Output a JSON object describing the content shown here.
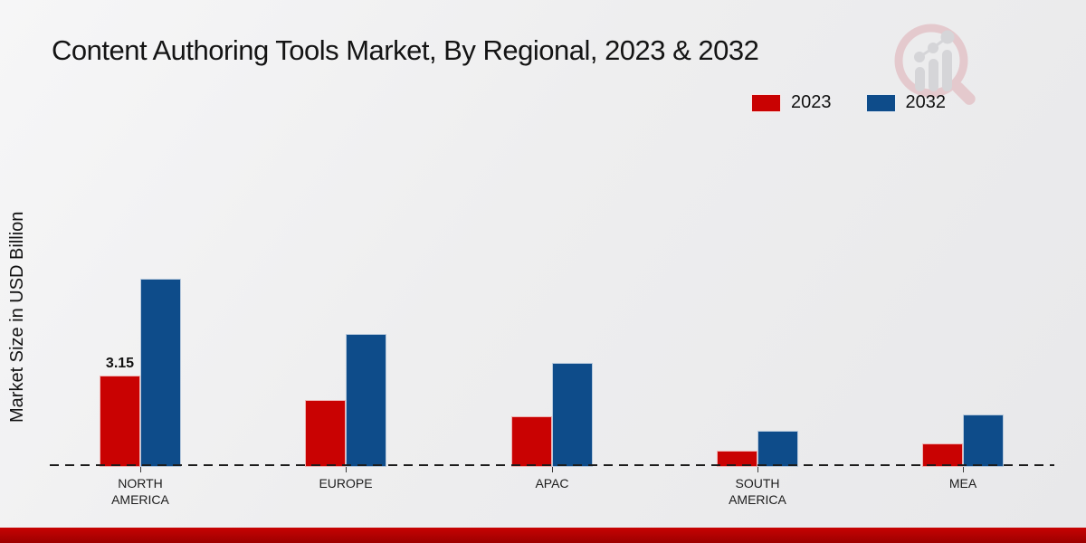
{
  "title": "Content Authoring Tools Market, By Regional, 2023 & 2032",
  "y_axis_label": "Market Size in USD Billion",
  "accent_strip_color": "#b30000",
  "watermark_icon": "magnifier-bar-chart-logo",
  "chart_data": {
    "type": "bar",
    "title": "Content Authoring Tools Market, By Regional, 2023 & 2032",
    "xlabel": "",
    "ylabel": "Market Size in USD Billion",
    "categories": [
      "NORTH AMERICA",
      "EUROPE",
      "APAC",
      "SOUTH AMERICA",
      "MEA"
    ],
    "series": [
      {
        "name": "2023",
        "color": "#c90202",
        "values": [
          3.15,
          2.3,
          1.75,
          0.55,
          0.8
        ]
      },
      {
        "name": "2032",
        "color": "#0e4c8a",
        "values": [
          6.5,
          4.6,
          3.6,
          1.25,
          1.8
        ]
      }
    ],
    "annotations": [
      {
        "series_index": 0,
        "category_index": 0,
        "text": "3.15"
      }
    ],
    "ylim": [
      0,
      7
    ],
    "grid": false,
    "axis_style": "dashed-baseline-only",
    "legend_position": "top-right"
  }
}
